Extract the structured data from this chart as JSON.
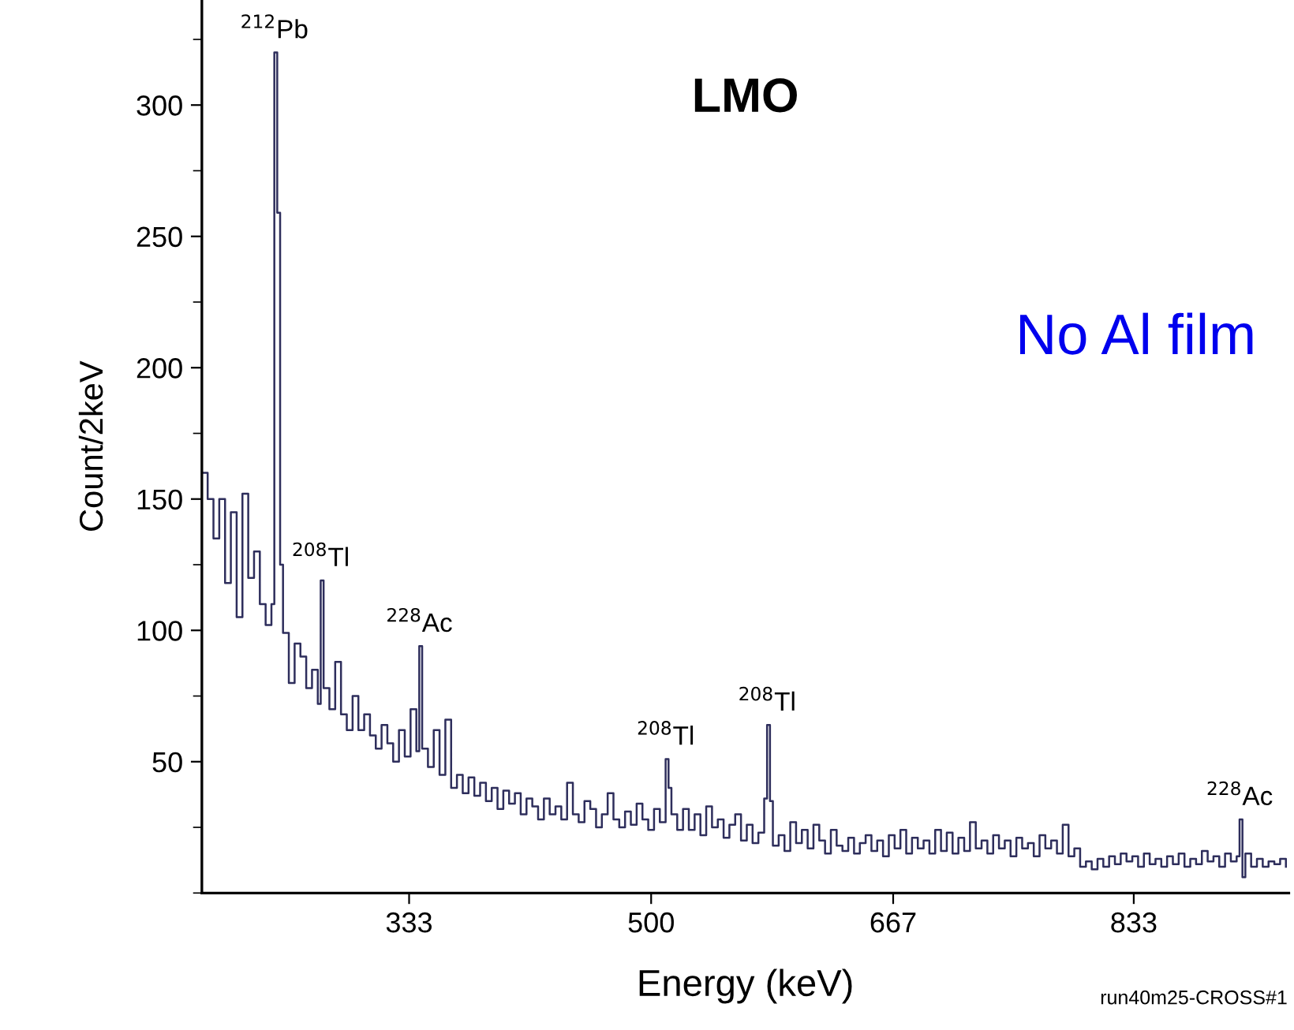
{
  "chart_data": {
    "type": "step",
    "title": "LMO",
    "xlabel": "Energy (keV)",
    "ylabel": "Count/2keV",
    "series": [
      {
        "color": "#2e2e5c",
        "x": [
          190,
          194,
          198,
          202,
          206,
          210,
          214,
          218,
          222,
          226,
          230,
          234,
          238,
          240,
          242,
          244,
          246,
          250,
          254,
          258,
          262,
          266,
          270,
          272,
          274,
          278,
          282,
          286,
          290,
          294,
          298,
          302,
          306,
          310,
          314,
          318,
          322,
          326,
          330,
          334,
          338,
          340,
          342,
          346,
          350,
          354,
          358,
          362,
          366,
          370,
          374,
          378,
          382,
          386,
          390,
          394,
          398,
          402,
          406,
          410,
          414,
          418,
          422,
          426,
          430,
          434,
          438,
          442,
          446,
          450,
          454,
          458,
          462,
          466,
          470,
          474,
          478,
          482,
          486,
          490,
          494,
          498,
          502,
          506,
          510,
          512,
          514,
          518,
          522,
          526,
          530,
          534,
          538,
          542,
          546,
          550,
          554,
          558,
          562,
          566,
          570,
          574,
          578,
          580,
          582,
          584,
          588,
          592,
          596,
          600,
          604,
          608,
          612,
          616,
          620,
          624,
          628,
          632,
          636,
          640,
          644,
          648,
          652,
          656,
          660,
          664,
          668,
          672,
          676,
          680,
          684,
          688,
          692,
          696,
          700,
          704,
          708,
          712,
          716,
          720,
          724,
          728,
          732,
          736,
          740,
          744,
          748,
          752,
          756,
          760,
          764,
          768,
          772,
          776,
          780,
          784,
          788,
          792,
          796,
          800,
          804,
          808,
          812,
          816,
          820,
          824,
          828,
          832,
          836,
          840,
          844,
          848,
          852,
          856,
          860,
          864,
          868,
          872,
          876,
          880,
          884,
          888,
          892,
          896,
          900,
          904,
          906,
          908,
          910,
          914,
          918,
          922,
          926,
          930,
          934,
          938
        ],
        "values": [
          160,
          150,
          135,
          150,
          118,
          145,
          105,
          152,
          120,
          130,
          110,
          102,
          110,
          320,
          259,
          125,
          99,
          80,
          95,
          90,
          78,
          85,
          72,
          119,
          78,
          70,
          88,
          68,
          62,
          75,
          62,
          68,
          60,
          55,
          64,
          57,
          50,
          62,
          52,
          70,
          54,
          94,
          55,
          48,
          62,
          45,
          66,
          40,
          45,
          38,
          44,
          37,
          42,
          35,
          40,
          32,
          39,
          34,
          38,
          30,
          36,
          33,
          28,
          36,
          30,
          33,
          28,
          42,
          30,
          27,
          35,
          32,
          25,
          30,
          38,
          28,
          25,
          31,
          26,
          34,
          28,
          24,
          32,
          27,
          51,
          40,
          30,
          24,
          32,
          24,
          30,
          22,
          33,
          25,
          28,
          21,
          26,
          30,
          20,
          26,
          19,
          23,
          36,
          64,
          35,
          18,
          22,
          16,
          27,
          19,
          24,
          17,
          26,
          20,
          15,
          24,
          18,
          16,
          21,
          15,
          19,
          22,
          16,
          20,
          14,
          22,
          17,
          24,
          15,
          21,
          17,
          20,
          15,
          24,
          16,
          23,
          15,
          21,
          16,
          27,
          17,
          20,
          15,
          22,
          17,
          20,
          14,
          21,
          17,
          19,
          14,
          22,
          17,
          20,
          15,
          26,
          14,
          17,
          10,
          12,
          9,
          13,
          10,
          14,
          11,
          15,
          12,
          14,
          10,
          15,
          11,
          13,
          10,
          14,
          11,
          15,
          10,
          13,
          11,
          16,
          12,
          14,
          10,
          15,
          12,
          14,
          28,
          6,
          15,
          10,
          13,
          10,
          12,
          11,
          13,
          10
        ]
      }
    ],
    "xlim": [
      190,
      940
    ],
    "ylim": [
      0,
      340
    ],
    "xticks": [
      333,
      500,
      667,
      833
    ],
    "yticks": [
      50,
      100,
      150,
      200,
      250,
      300
    ],
    "grid": false,
    "legend": false,
    "annotations": [
      {
        "text": "$^{212}$Pb",
        "x": 240,
        "y": 320
      },
      {
        "text": "$^{208}$Tl",
        "x": 272,
        "y": 119
      },
      {
        "text": "$^{228}$Ac",
        "x": 340,
        "y": 94
      },
      {
        "text": "$^{208}$Tl",
        "x": 510,
        "y": 51
      },
      {
        "text": "$^{208}$Tl",
        "x": 580,
        "y": 64
      },
      {
        "text": "$^{228}$Ac",
        "x": 906,
        "y": 28
      },
      "No Al film",
      "run40m25-CROSS#1"
    ]
  }
}
